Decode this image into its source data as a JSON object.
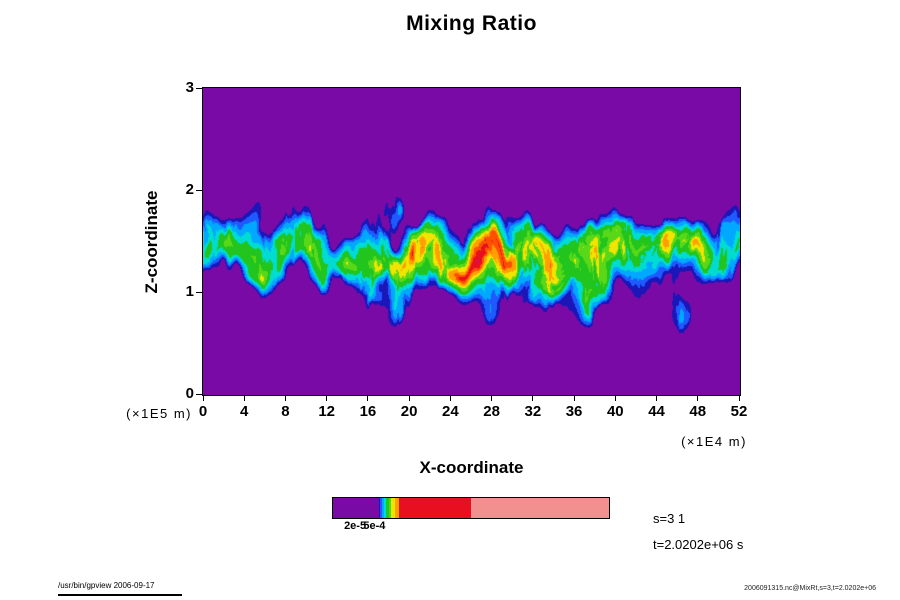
{
  "chart_data": {
    "type": "heatmap",
    "title": "Mixing Ratio",
    "xlabel": "X-coordinate",
    "ylabel": "Z-coordinate",
    "x_axis_unit": "(×1E4 m)",
    "y_axis_unit": "(×1E5 m)",
    "xlim": [
      0,
      52
    ],
    "ylim": [
      0,
      3
    ],
    "x_ticks": [
      0,
      4,
      8,
      12,
      16,
      20,
      24,
      28,
      32,
      36,
      40,
      44,
      48,
      52
    ],
    "y_ticks": [
      0,
      1,
      2,
      3
    ],
    "grid": false,
    "legend": "none",
    "description": "Vertical cross-section of a mixing-ratio field: uniform low-value purple background with a turbulent mixing layer centred near z≈1.3 (×1E5 m) spanning z≈0.85–1.75 across all x; band edges fringed dark blue/cyan, interior mostly green with yellow/orange patches and strongest red/crimson plumes between x≈18–46 (×1E4 m); left portion (x<16) weaker, mostly cyan/green.",
    "annotations": {
      "s_label": "s=3 1",
      "t_label": "t=2.0202e+06 s"
    },
    "colorbar": {
      "orientation": "horizontal",
      "labels": [
        {
          "text": "2e-5",
          "pos": 0.08
        },
        {
          "text": "5e-4",
          "pos": 0.15
        }
      ],
      "segments": [
        {
          "color": "#7A0AA6",
          "frac": 0.165
        },
        {
          "color": "#1A16B8",
          "frac": 0.007
        },
        {
          "color": "#1E5AFF",
          "frac": 0.007
        },
        {
          "color": "#00A8FF",
          "frac": 0.007
        },
        {
          "color": "#00DCD2",
          "frac": 0.007
        },
        {
          "color": "#20C81E",
          "frac": 0.009
        },
        {
          "color": "#50D818",
          "frac": 0.009
        },
        {
          "color": "#F0E400",
          "frac": 0.013
        },
        {
          "color": "#FFA000",
          "frac": 0.016
        },
        {
          "color": "#E81020",
          "frac": 0.26
        },
        {
          "color": "#F29090",
          "frac": 0.5
        }
      ]
    },
    "levels": [
      {
        "max": 0.1,
        "color": "#7A0AA6"
      },
      {
        "max": 0.14,
        "color": "#1A16B8"
      },
      {
        "max": 0.18,
        "color": "#1E5AFF"
      },
      {
        "max": 0.24,
        "color": "#00A8FF"
      },
      {
        "max": 0.31,
        "color": "#00DCD2"
      },
      {
        "max": 0.41,
        "color": "#22C41E"
      },
      {
        "max": 0.49,
        "color": "#58D818"
      },
      {
        "max": 0.58,
        "color": "#F0E400"
      },
      {
        "max": 0.68,
        "color": "#FFA000"
      },
      {
        "max": 0.77,
        "color": "#FF5000"
      },
      {
        "max": 0.88,
        "color": "#E81020"
      },
      {
        "max": 0.96,
        "color": "#D8104E"
      },
      {
        "max": 9.0,
        "color": "#F29090"
      }
    ],
    "field_model": {
      "band_center": 1.32,
      "band_meander": 0.36,
      "sigma_up": [
        0.12,
        0.16
      ],
      "sigma_down": [
        0.13,
        0.22
      ],
      "hot_center_x": 31,
      "hot_width_x": 16,
      "hot_gain": [
        0.5,
        0.55
      ],
      "turb_gain": [
        0.1,
        1.05
      ],
      "warp": [
        4.0,
        1.0
      ]
    }
  },
  "footer": {
    "left": "/usr/bin/gpview 2006-09-17",
    "right": "2006091315.nc@MixRt,s=3,t=2.0202e+06"
  }
}
